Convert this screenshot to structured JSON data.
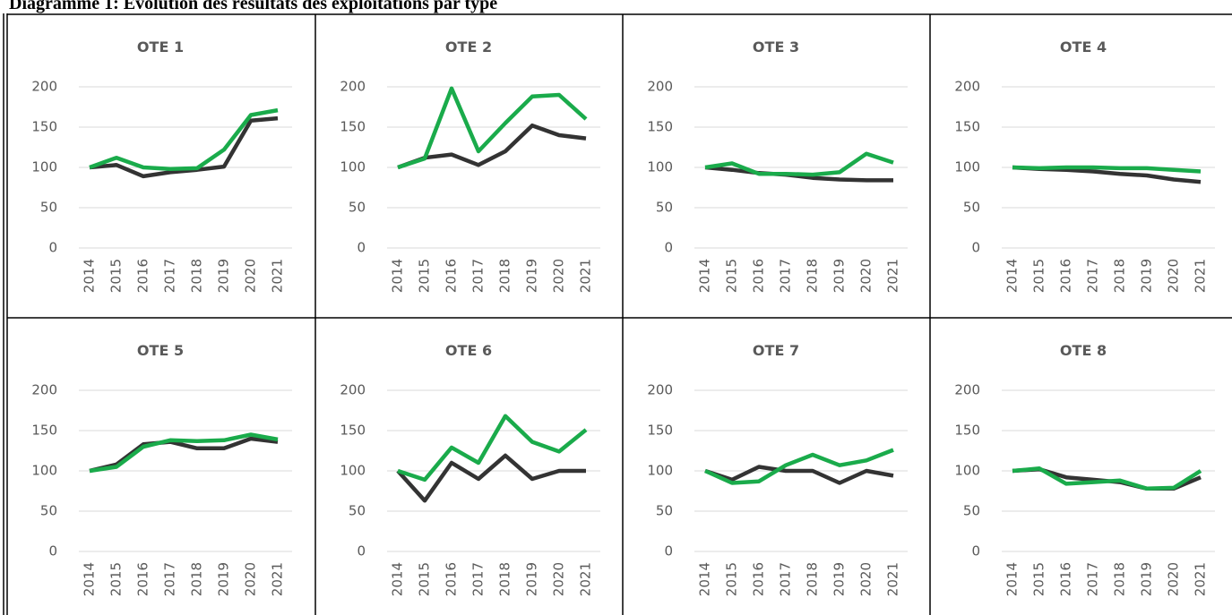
{
  "page_title": "Diagramme 1: Evolution des résultats des exploitations par type",
  "chart_data": [
    {
      "type": "line",
      "title": "OTE 1",
      "categories": [
        "2014",
        "2015",
        "2016",
        "2017",
        "2018",
        "2019",
        "2020",
        "2021"
      ],
      "ylim": [
        0,
        200
      ],
      "yticks": [
        0,
        50,
        100,
        150,
        200
      ],
      "grid": true,
      "series": [
        {
          "color": "#333333",
          "values": [
            100,
            103,
            89,
            94,
            97,
            101,
            158,
            161
          ]
        },
        {
          "color": "#1aab4b",
          "values": [
            100,
            112,
            100,
            98,
            99,
            122,
            165,
            171
          ]
        }
      ]
    },
    {
      "type": "line",
      "title": "OTE 2",
      "categories": [
        "2014",
        "2015",
        "2016",
        "2017",
        "2018",
        "2019",
        "2020",
        "2021"
      ],
      "ylim": [
        0,
        200
      ],
      "yticks": [
        0,
        50,
        100,
        150,
        200
      ],
      "grid": true,
      "series": [
        {
          "color": "#333333",
          "values": [
            100,
            112,
            116,
            103,
            120,
            152,
            140,
            136
          ]
        },
        {
          "color": "#1aab4b",
          "values": [
            100,
            111,
            198,
            120,
            155,
            188,
            190,
            160
          ]
        }
      ]
    },
    {
      "type": "line",
      "title": "OTE 3",
      "categories": [
        "2014",
        "2015",
        "2016",
        "2017",
        "2018",
        "2019",
        "2020",
        "2021"
      ],
      "ylim": [
        0,
        200
      ],
      "yticks": [
        0,
        50,
        100,
        150,
        200
      ],
      "grid": true,
      "series": [
        {
          "color": "#333333",
          "values": [
            100,
            97,
            93,
            91,
            87,
            85,
            84,
            84
          ]
        },
        {
          "color": "#1aab4b",
          "values": [
            100,
            105,
            92,
            92,
            91,
            94,
            117,
            106
          ]
        }
      ]
    },
    {
      "type": "line",
      "title": "OTE 4",
      "categories": [
        "2014",
        "2015",
        "2016",
        "2017",
        "2018",
        "2019",
        "2020",
        "2021"
      ],
      "ylim": [
        0,
        200
      ],
      "yticks": [
        0,
        50,
        100,
        150,
        200
      ],
      "grid": true,
      "series": [
        {
          "color": "#333333",
          "values": [
            100,
            98,
            97,
            95,
            92,
            90,
            85,
            82
          ]
        },
        {
          "color": "#1aab4b",
          "values": [
            100,
            99,
            100,
            100,
            99,
            99,
            97,
            95
          ]
        }
      ]
    },
    {
      "type": "line",
      "title": "OTE 5",
      "categories": [
        "2014",
        "2015",
        "2016",
        "2017",
        "2018",
        "2019",
        "2020",
        "2021"
      ],
      "ylim": [
        0,
        200
      ],
      "yticks": [
        0,
        50,
        100,
        150,
        200
      ],
      "grid": true,
      "series": [
        {
          "color": "#333333",
          "values": [
            100,
            108,
            133,
            136,
            128,
            128,
            140,
            136
          ]
        },
        {
          "color": "#1aab4b",
          "values": [
            100,
            105,
            130,
            138,
            137,
            138,
            145,
            139
          ]
        }
      ]
    },
    {
      "type": "line",
      "title": "OTE 6",
      "categories": [
        "2014",
        "2015",
        "2016",
        "2017",
        "2018",
        "2019",
        "2020",
        "2021"
      ],
      "ylim": [
        0,
        200
      ],
      "yticks": [
        0,
        50,
        100,
        150,
        200
      ],
      "grid": true,
      "series": [
        {
          "color": "#333333",
          "values": [
            100,
            63,
            110,
            90,
            119,
            90,
            100,
            100
          ]
        },
        {
          "color": "#1aab4b",
          "values": [
            100,
            89,
            129,
            110,
            168,
            136,
            124,
            151
          ]
        }
      ]
    },
    {
      "type": "line",
      "title": "OTE 7",
      "categories": [
        "2014",
        "2015",
        "2016",
        "2017",
        "2018",
        "2019",
        "2020",
        "2021"
      ],
      "ylim": [
        0,
        200
      ],
      "yticks": [
        0,
        50,
        100,
        150,
        200
      ],
      "grid": true,
      "series": [
        {
          "color": "#333333",
          "values": [
            100,
            89,
            105,
            100,
            100,
            85,
            100,
            94
          ]
        },
        {
          "color": "#1aab4b",
          "values": [
            100,
            85,
            87,
            107,
            120,
            107,
            113,
            126
          ]
        }
      ]
    },
    {
      "type": "line",
      "title": "OTE 8",
      "categories": [
        "2014",
        "2015",
        "2016",
        "2017",
        "2018",
        "2019",
        "2020",
        "2021"
      ],
      "ylim": [
        0,
        200
      ],
      "yticks": [
        0,
        50,
        100,
        150,
        200
      ],
      "grid": true,
      "series": [
        {
          "color": "#333333",
          "values": [
            100,
            102,
            92,
            89,
            86,
            78,
            78,
            92
          ]
        },
        {
          "color": "#1aab4b",
          "values": [
            100,
            103,
            84,
            86,
            88,
            78,
            79,
            100
          ]
        }
      ]
    }
  ]
}
